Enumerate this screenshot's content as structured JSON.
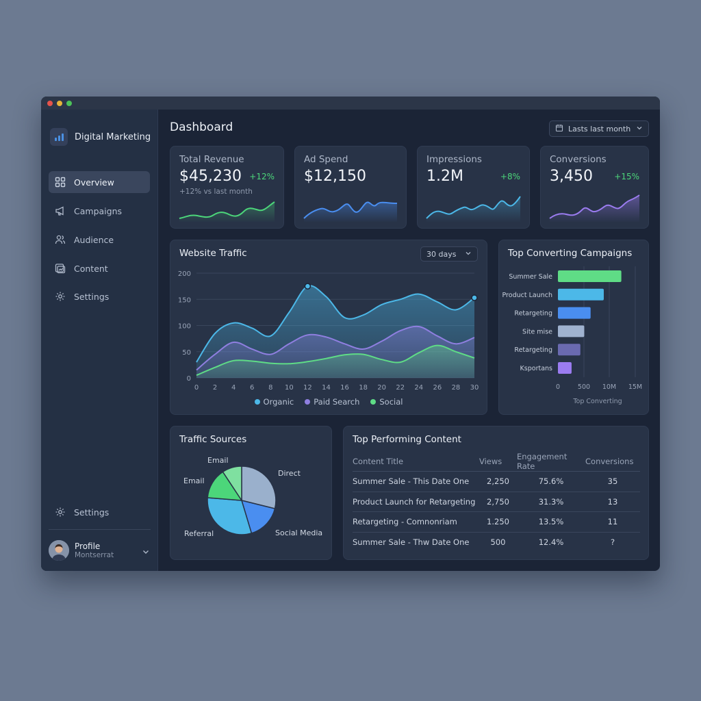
{
  "window": {
    "controls": [
      {
        "name": "close",
        "color": "#e5534b"
      },
      {
        "name": "minimize",
        "color": "#e6b43a"
      },
      {
        "name": "zoom",
        "color": "#4cc25a"
      }
    ]
  },
  "sidebar": {
    "brand": {
      "name": "Digital Marketing",
      "icon": "bar-chart-icon"
    },
    "items": [
      {
        "label": "Overview",
        "icon": "grid-icon",
        "active": true
      },
      {
        "label": "Campaigns",
        "icon": "megaphone-icon",
        "active": false
      },
      {
        "label": "Audience",
        "icon": "users-icon",
        "active": false
      },
      {
        "label": "Content",
        "icon": "content-icon",
        "active": false
      },
      {
        "label": "Settings",
        "icon": "gear-icon",
        "active": false
      }
    ],
    "bottom_settings": {
      "label": "Settings",
      "icon": "gear-icon"
    },
    "profile": {
      "name": "Profile",
      "subtitle": "Montserrat",
      "icon": "chevron-down-icon"
    }
  },
  "header": {
    "title": "Dashboard",
    "date_range": {
      "label": "Lasts last month",
      "icon": "calendar-icon"
    }
  },
  "kpis": [
    {
      "label": "Total Revenue",
      "value": "$45,230",
      "delta": "+12%",
      "sub": "+12% vs last month",
      "color": "#4cd67a"
    },
    {
      "label": "Ad Spend",
      "value": "$12,150",
      "delta": "",
      "sub": "",
      "color": "#4a8ef0"
    },
    {
      "label": "Impressions",
      "value": "1.2M",
      "delta": "+8%",
      "sub": "",
      "color": "#4cb8e8"
    },
    {
      "label": "Conversions",
      "value": "3,450",
      "delta": "+15%",
      "sub": "",
      "color": "#9b7cf0"
    }
  ],
  "traffic": {
    "title": "Website Traffic",
    "range": "30 days",
    "legend": [
      "Organic",
      "Paid Search",
      "Social"
    ]
  },
  "campaigns": {
    "title": "Top Converting Campaigns",
    "xlabel": "Top Converting"
  },
  "sources": {
    "title": "Traffic Sources"
  },
  "content": {
    "title": "Top Performing Content",
    "headers": [
      "Content Title",
      "Views",
      "Engagement Rate",
      "Conversions"
    ],
    "rows": [
      [
        "Summer Sale - This Date One",
        "2,250",
        "75.6%",
        "35"
      ],
      [
        "Product Launch for Retargeting",
        "2,750",
        "31.3%",
        "13"
      ],
      [
        "Retargeting - Comnonriam",
        "1.250",
        "13.5%",
        "11"
      ],
      [
        "Summer Sale - Thw Date One",
        "500",
        "12.4%",
        "?"
      ]
    ]
  },
  "chart_data": [
    {
      "type": "area",
      "title": "Website Traffic",
      "x": [
        0,
        2,
        4,
        6,
        8,
        10,
        12,
        14,
        16,
        18,
        20,
        22,
        24,
        26,
        28,
        30
      ],
      "xticks": [
        "0",
        "2",
        "4",
        "6",
        "8",
        "10",
        "12",
        "14",
        "16",
        "18",
        "20",
        "22",
        "24",
        "26",
        "28",
        "30"
      ],
      "yticks": [
        "0",
        "50",
        "100",
        "150",
        "200"
      ],
      "ylim": [
        0,
        200
      ],
      "grid": true,
      "legend_position": "bottom",
      "series": [
        {
          "name": "Organic",
          "color": "#4cb8e8",
          "values": [
            30,
            85,
            105,
            95,
            80,
            125,
            175,
            155,
            115,
            120,
            140,
            150,
            160,
            145,
            130,
            153
          ]
        },
        {
          "name": "Paid Search",
          "color": "#8f7fe0",
          "values": [
            15,
            45,
            68,
            55,
            45,
            65,
            82,
            78,
            65,
            55,
            70,
            90,
            98,
            80,
            65,
            77
          ]
        },
        {
          "name": "Social",
          "color": "#5fdc86",
          "values": [
            5,
            20,
            33,
            32,
            28,
            27,
            31,
            37,
            44,
            45,
            35,
            30,
            48,
            62,
            50,
            38
          ]
        }
      ]
    },
    {
      "type": "bar",
      "orientation": "horizontal",
      "title": "Top Converting Campaigns",
      "categories": [
        "Summer Sale",
        "Product Launch",
        "Retargeting",
        "Site mise",
        "Retargeting",
        "Ksportans"
      ],
      "values": [
        1300,
        940,
        670,
        540,
        460,
        280
      ],
      "colors": [
        "#5fdc86",
        "#4cb8e8",
        "#4a8ef0",
        "#9fb2cf",
        "#6a6ab0",
        "#9b7cf0"
      ],
      "xticks": [
        "0",
        "500",
        "10M",
        "15M"
      ],
      "xlabel": "Top Converting",
      "grid": true
    },
    {
      "type": "pie",
      "title": "Traffic Sources",
      "labels": [
        "Direct",
        "Social Media",
        "Referral",
        "Email",
        "Email"
      ],
      "values": [
        28,
        16,
        30,
        14,
        9
      ],
      "colors": [
        "#9ab0cc",
        "#4a8ef0",
        "#4cb8e8",
        "#4cd67a",
        "#7fe0a0"
      ]
    }
  ]
}
